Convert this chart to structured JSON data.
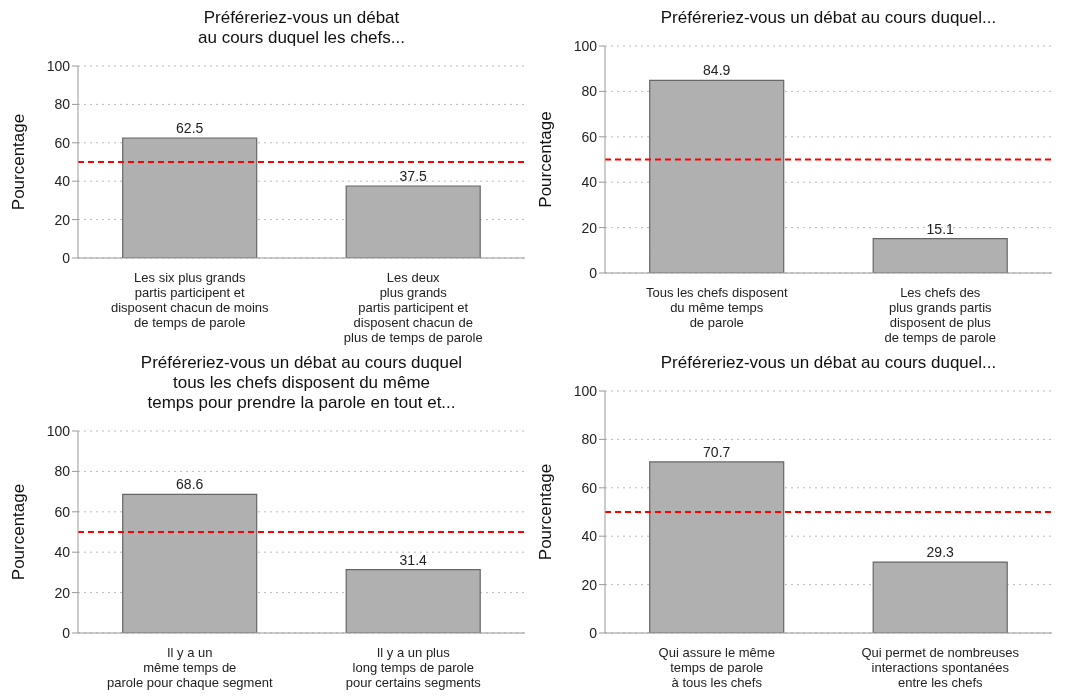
{
  "chart_data": [
    {
      "type": "bar",
      "title": "Préféreriez-vous un débat\nau cours duquel les chefs...",
      "ylabel": "Pourcentage",
      "categories": [
        "Les six plus grands\npartis participent et\ndisposent chacun de moins\nde temps de parole",
        "Les deux\nplus grands\npartis participent et\ndisposent chacun de\nplus de temps de parole"
      ],
      "values": [
        62.5,
        37.5
      ],
      "color": "#b0b0b0",
      "ylim": [
        0,
        100
      ],
      "yticks": [
        0,
        20,
        40,
        60,
        80,
        100
      ],
      "grid": "y",
      "data_labels": true,
      "ref_lines": [
        {
          "axis": "y",
          "value": 50,
          "color": "#ff0000",
          "line_style": "dashed"
        }
      ]
    },
    {
      "type": "bar",
      "title": "Préféreriez-vous un débat au cours duquel...",
      "ylabel": "Pourcentage",
      "categories": [
        "Tous les chefs disposent\ndu même temps\nde parole",
        "Les chefs des\nplus grands partis\ndisposent de plus\nde temps de parole"
      ],
      "values": [
        84.9,
        15.1
      ],
      "color": "#b0b0b0",
      "ylim": [
        0,
        100
      ],
      "yticks": [
        0,
        20,
        40,
        60,
        80,
        100
      ],
      "grid": "y",
      "data_labels": true,
      "ref_lines": [
        {
          "axis": "y",
          "value": 50,
          "color": "#ff0000",
          "line_style": "dashed"
        }
      ]
    },
    {
      "type": "bar",
      "title": "Préféreriez-vous un débat au cours duquel\ntous les chefs disposent du même\ntemps pour prendre la parole en tout et...",
      "ylabel": "Pourcentage",
      "categories": [
        "Il y a un\nmême temps de\nparole pour chaque segment",
        "Il y a un plus\nlong temps de parole\npour certains segments"
      ],
      "values": [
        68.6,
        31.4
      ],
      "color": "#b0b0b0",
      "ylim": [
        0,
        100
      ],
      "yticks": [
        0,
        20,
        40,
        60,
        80,
        100
      ],
      "grid": "y",
      "data_labels": true,
      "ref_lines": [
        {
          "axis": "y",
          "value": 50,
          "color": "#ff0000",
          "line_style": "dashed"
        }
      ]
    },
    {
      "type": "bar",
      "title": "Préféreriez-vous un débat au cours duquel...",
      "ylabel": "Pourcentage",
      "categories": [
        "Qui assure le même\ntemps de parole\nà tous les chefs",
        "Qui permet de nombreuses\ninteractions spontanées\nentre les chefs"
      ],
      "values": [
        70.7,
        29.3
      ],
      "color": "#b0b0b0",
      "ylim": [
        0,
        100
      ],
      "yticks": [
        0,
        20,
        40,
        60,
        80,
        100
      ],
      "grid": "y",
      "data_labels": true,
      "ref_lines": [
        {
          "axis": "y",
          "value": 50,
          "color": "#ff0000",
          "line_style": "dashed"
        }
      ]
    }
  ]
}
